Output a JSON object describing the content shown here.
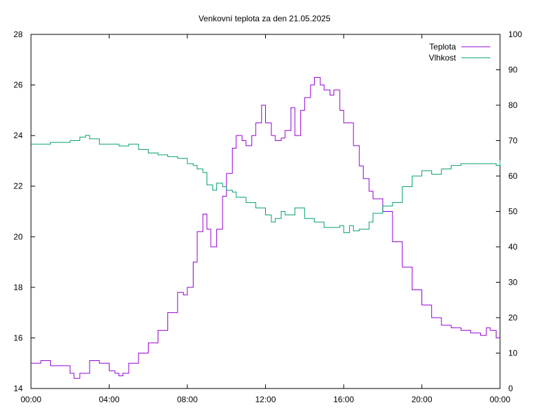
{
  "chart_data": {
    "type": "line",
    "title": "Venkovní teplota za den 21.05.2025",
    "x_ticks": [
      "00:00",
      "04:00",
      "08:00",
      "12:00",
      "16:00",
      "20:00",
      "00:00"
    ],
    "x_range_hours": [
      0,
      24
    ],
    "y_left": {
      "range": [
        14,
        28
      ],
      "ticks": [
        14,
        16,
        18,
        20,
        22,
        24,
        26,
        28
      ]
    },
    "y_right": {
      "range": [
        0,
        100
      ],
      "ticks": [
        0,
        10,
        20,
        30,
        40,
        50,
        60,
        70,
        80,
        90,
        100
      ]
    },
    "grid": false,
    "legend_position": "top-right",
    "series": [
      {
        "name": "Teplota",
        "axis": "left",
        "color": "#9400d3",
        "x": [
          0,
          0.5,
          1,
          1.5,
          2,
          2.2,
          2.5,
          3,
          3.5,
          4,
          4.3,
          4.5,
          4.7,
          5,
          5.5,
          6,
          6.5,
          7,
          7.5,
          7.8,
          8,
          8.3,
          8.5,
          8.8,
          9,
          9.2,
          9.5,
          9.8,
          10,
          10.3,
          10.5,
          10.8,
          11,
          11.3,
          11.5,
          11.8,
          12,
          12.3,
          12.5,
          12.8,
          13,
          13.3,
          13.5,
          13.8,
          14,
          14.3,
          14.5,
          14.8,
          15,
          15.3,
          15.5,
          15.8,
          16,
          16.3,
          16.5,
          16.8,
          17,
          17.3,
          17.5,
          18,
          18.5,
          19,
          19.5,
          20,
          20.5,
          21,
          21.5,
          22,
          22.5,
          23,
          23.3,
          23.5,
          23.8,
          24
        ],
        "values": [
          15.0,
          15.1,
          14.9,
          14.9,
          14.6,
          14.4,
          14.6,
          15.1,
          15.0,
          14.7,
          14.6,
          14.5,
          14.6,
          15.0,
          15.4,
          15.8,
          16.3,
          17.0,
          17.8,
          17.7,
          18.0,
          19.0,
          20.2,
          20.9,
          20.3,
          19.6,
          20.3,
          21.6,
          22.5,
          23.5,
          24.0,
          23.8,
          23.6,
          24.0,
          24.5,
          25.2,
          24.5,
          24.0,
          23.8,
          23.9,
          24.2,
          25.1,
          24.0,
          25.0,
          25.5,
          26.0,
          26.3,
          26.0,
          25.8,
          25.6,
          25.8,
          25.0,
          24.5,
          24.5,
          23.6,
          22.8,
          22.3,
          21.8,
          21.5,
          21.0,
          19.8,
          18.8,
          17.9,
          17.3,
          16.8,
          16.5,
          16.4,
          16.3,
          16.2,
          16.1,
          16.4,
          16.3,
          16.0,
          16.0
        ]
      },
      {
        "name": "Vlhkost",
        "axis": "right",
        "color": "#009e73",
        "x": [
          0,
          0.5,
          1,
          1.5,
          2,
          2.5,
          2.8,
          3,
          3.5,
          4,
          4.5,
          5,
          5.5,
          6,
          6.5,
          7,
          7.5,
          8,
          8.3,
          8.5,
          8.8,
          9,
          9.3,
          9.5,
          9.8,
          10,
          10.3,
          10.5,
          11,
          11.5,
          12,
          12.3,
          12.5,
          12.8,
          13,
          13.5,
          14,
          14.5,
          15,
          15.5,
          15.8,
          16,
          16.3,
          16.5,
          16.8,
          17,
          17.3,
          17.5,
          18,
          18.5,
          19,
          19.5,
          20,
          20.5,
          21,
          21.5,
          22,
          22.5,
          23,
          23.5,
          23.8,
          24
        ],
        "values": [
          69,
          69,
          69.5,
          69.5,
          70,
          71,
          71.5,
          70.5,
          69,
          69,
          68.5,
          69,
          67.5,
          66.5,
          66,
          65.5,
          65,
          63.5,
          63,
          62,
          61,
          57.5,
          56,
          58,
          57,
          56,
          55.5,
          54,
          52.5,
          51,
          49,
          47,
          48,
          50,
          49,
          51,
          48,
          47,
          45.5,
          45.5,
          46,
          44,
          46,
          44.5,
          45,
          45,
          47,
          49.5,
          51.5,
          52.5,
          57,
          60,
          61.5,
          60.5,
          62,
          63,
          63.5,
          63.5,
          63.5,
          63.5,
          63,
          64.5
        ]
      }
    ]
  }
}
